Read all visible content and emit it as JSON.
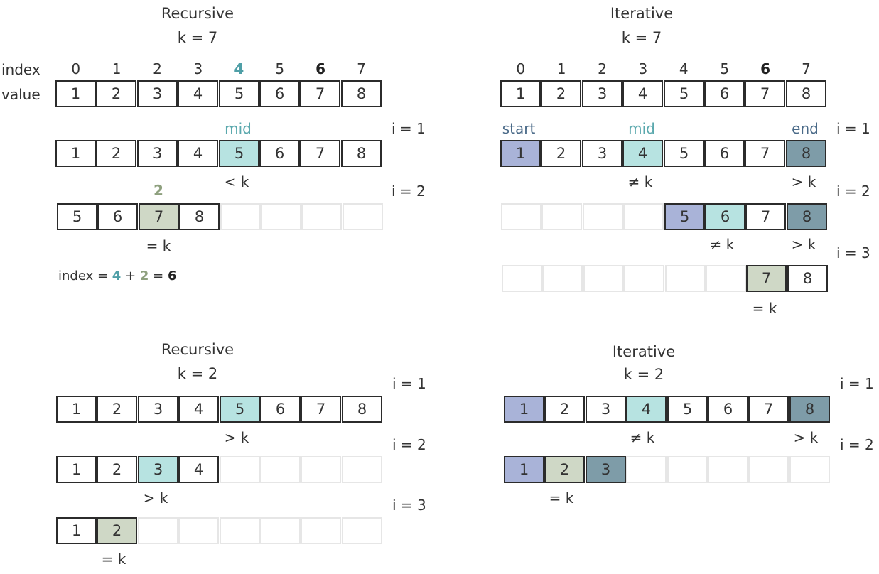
{
  "panels": {
    "rec7": {
      "title": "Recursive",
      "k": "k = 7"
    },
    "it7": {
      "title": "Iterative",
      "k": "k = 7"
    },
    "rec2": {
      "title": "Recursive",
      "k": "k = 2"
    },
    "it2": {
      "title": "Iterative",
      "k": "k = 2"
    }
  },
  "header_labels": {
    "index": "index",
    "value": "value"
  },
  "indices": [
    "0",
    "1",
    "2",
    "3",
    "4",
    "5",
    "6",
    "7"
  ],
  "values": [
    "1",
    "2",
    "3",
    "4",
    "5",
    "6",
    "7",
    "8"
  ],
  "iterations": {
    "i1": "i = 1",
    "i2": "i = 2",
    "i3": "i = 3"
  },
  "markers": {
    "mid": "mid",
    "start": "start",
    "end": "end"
  },
  "comparisons": {
    "lt": "< k",
    "gt": "> k",
    "neq": "≠ k",
    "eq": "= k"
  },
  "rec7_found_index": "2",
  "formula": {
    "prefix": "index =",
    "a": "4",
    "plus": "+",
    "b": "2",
    "eq": "=",
    "result": "6"
  },
  "rows": {
    "rec7_row1": [
      "1",
      "2",
      "3",
      "4",
      "5",
      "6",
      "7",
      "8"
    ],
    "rec7_row2": [
      "5",
      "6",
      "7",
      "8",
      "",
      "",
      "",
      ""
    ],
    "it7_row1": [
      "1",
      "2",
      "3",
      "4",
      "5",
      "6",
      "7",
      "8"
    ],
    "it7_row2": [
      "",
      "",
      "",
      "",
      "5",
      "6",
      "7",
      "8"
    ],
    "it7_row3": [
      "",
      "",
      "",
      "",
      "",
      "",
      "7",
      "8"
    ],
    "rec2_row1": [
      "1",
      "2",
      "3",
      "4",
      "5",
      "6",
      "7",
      "8"
    ],
    "rec2_row2": [
      "1",
      "2",
      "3",
      "4",
      "",
      "",
      "",
      ""
    ],
    "rec2_row3": [
      "1",
      "2",
      "",
      "",
      "",
      "",
      "",
      ""
    ],
    "it2_row1": [
      "1",
      "2",
      "3",
      "4",
      "5",
      "6",
      "7",
      "8"
    ],
    "it2_row2": [
      "1",
      "2",
      "3",
      "",
      "",
      "",
      "",
      ""
    ]
  },
  "colors": {
    "mid": "#b7e3e1",
    "start": "#a9b3d8",
    "end": "#7e9ca8",
    "found": "#cfd8c6"
  }
}
